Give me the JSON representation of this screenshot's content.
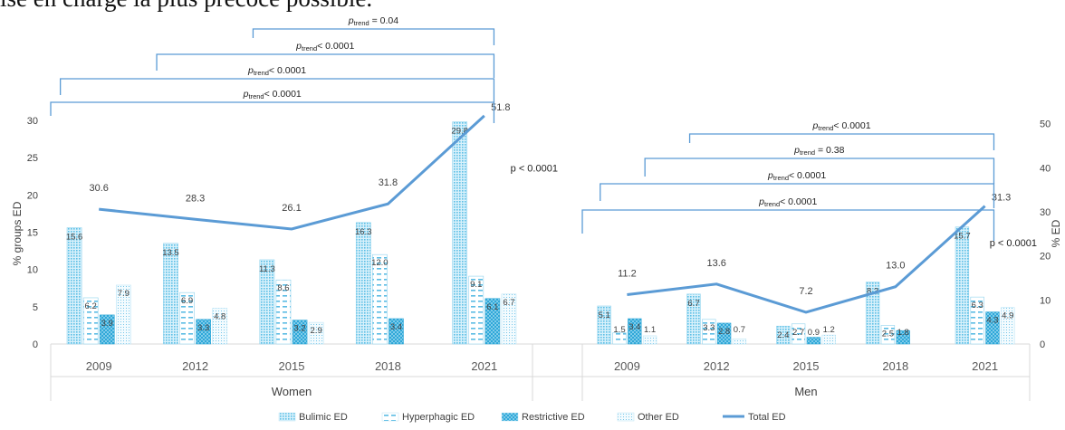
{
  "page": {
    "top_text": "ise en charge la plus précoce possible."
  },
  "chart_data": {
    "type": "bar",
    "title": "",
    "categories": [
      "2009",
      "2012",
      "2015",
      "2018",
      "2021"
    ],
    "groups": [
      "Women",
      "Men"
    ],
    "ylabel_left": "% groups ED",
    "ylabel_right": "% ED",
    "ylim_left": [
      0,
      30
    ],
    "yticks_left": [
      "0",
      "5",
      "10",
      "15",
      "20",
      "25",
      "30"
    ],
    "ylim_right": [
      0,
      60
    ],
    "yticks_right": [
      "0",
      "10",
      "20",
      "30",
      "40",
      "50"
    ],
    "legend_position": "bottom",
    "series": [
      {
        "name": "Bulimic ED",
        "pattern": "dots",
        "color": "#8fd3ee",
        "women": [
          15.6,
          13.5,
          11.3,
          16.3,
          29.8
        ],
        "men": [
          5.1,
          6.7,
          2.4,
          8.3,
          15.7
        ]
      },
      {
        "name": "Hyperphagic ED",
        "pattern": "dashes",
        "color": "#5bbce4",
        "women": [
          6.2,
          6.9,
          8.6,
          12.0,
          9.1
        ],
        "men": [
          1.5,
          3.3,
          2.7,
          2.5,
          6.3
        ]
      },
      {
        "name": "Restrictive ED",
        "pattern": "weave",
        "color": "#2fa8d8",
        "women": [
          3.9,
          3.3,
          3.2,
          3.4,
          6.1
        ],
        "men": [
          3.4,
          2.8,
          0.9,
          1.8,
          4.3
        ]
      },
      {
        "name": "Other ED",
        "pattern": "fine",
        "color": "#9ad7ef",
        "women": [
          7.9,
          4.8,
          2.9,
          null,
          6.7
        ],
        "men": [
          1.1,
          0.7,
          1.2,
          null,
          4.9
        ]
      }
    ],
    "total_line": {
      "name": "Total ED",
      "color": "#5b9bd5",
      "women": [
        30.6,
        28.3,
        26.1,
        31.8,
        51.8
      ],
      "men": [
        11.2,
        13.6,
        7.2,
        13.0,
        31.3
      ]
    },
    "bar_labels": {
      "women": [
        [
          "15.6",
          "6.2",
          "3.9",
          ""
        ],
        [
          "13.5",
          "6.9",
          "3.3",
          "4.8"
        ],
        [
          "11.3",
          "8.6",
          "3.2",
          "2.9"
        ],
        [
          "16.3",
          "12.0",
          "3.4",
          ""
        ],
        [
          "29.8",
          "9.1",
          "6.1",
          "6.7"
        ]
      ],
      "men": [
        [
          "5.1",
          "1.5",
          "3.4",
          "1.1"
        ],
        [
          "6.7",
          "3.3",
          "2.8",
          "0.7"
        ],
        [
          "2.4",
          "2.7",
          "0.9",
          "1.2"
        ],
        [
          "8.3",
          "2.5",
          "1.8",
          ""
        ],
        [
          "15.7",
          "6.3",
          "4.3",
          "4.9"
        ]
      ]
    },
    "bar_labels_extra_women": [
      {
        "year_index": 0,
        "text": "7.9"
      }
    ],
    "p_trend_label": "trend",
    "women_brackets": [
      {
        "from": 2,
        "to": 4,
        "prefix": "p",
        "suffix": " = 0.04"
      },
      {
        "from": 1,
        "to": 4,
        "prefix": "p",
        "suffix": "< 0.0001"
      },
      {
        "from": 0,
        "to": 4,
        "prefix": "p",
        "suffix": "< 0.0001"
      },
      {
        "from": -1,
        "to": 4,
        "prefix": "p",
        "suffix": "< 0.0001"
      }
    ],
    "men_brackets": [
      {
        "from": 1,
        "to": 4,
        "prefix": "p",
        "suffix": "< 0.0001"
      },
      {
        "from": 0.5,
        "to": 4,
        "prefix": "p",
        "suffix": " = 0.38"
      },
      {
        "from": 0,
        "to": 4,
        "prefix": "p",
        "suffix": "< 0.0001"
      },
      {
        "from": -1,
        "to": 4,
        "prefix": "p",
        "suffix": "< 0.0001"
      }
    ],
    "women_p": "p < 0.0001",
    "men_p": "p < 0.0001"
  }
}
